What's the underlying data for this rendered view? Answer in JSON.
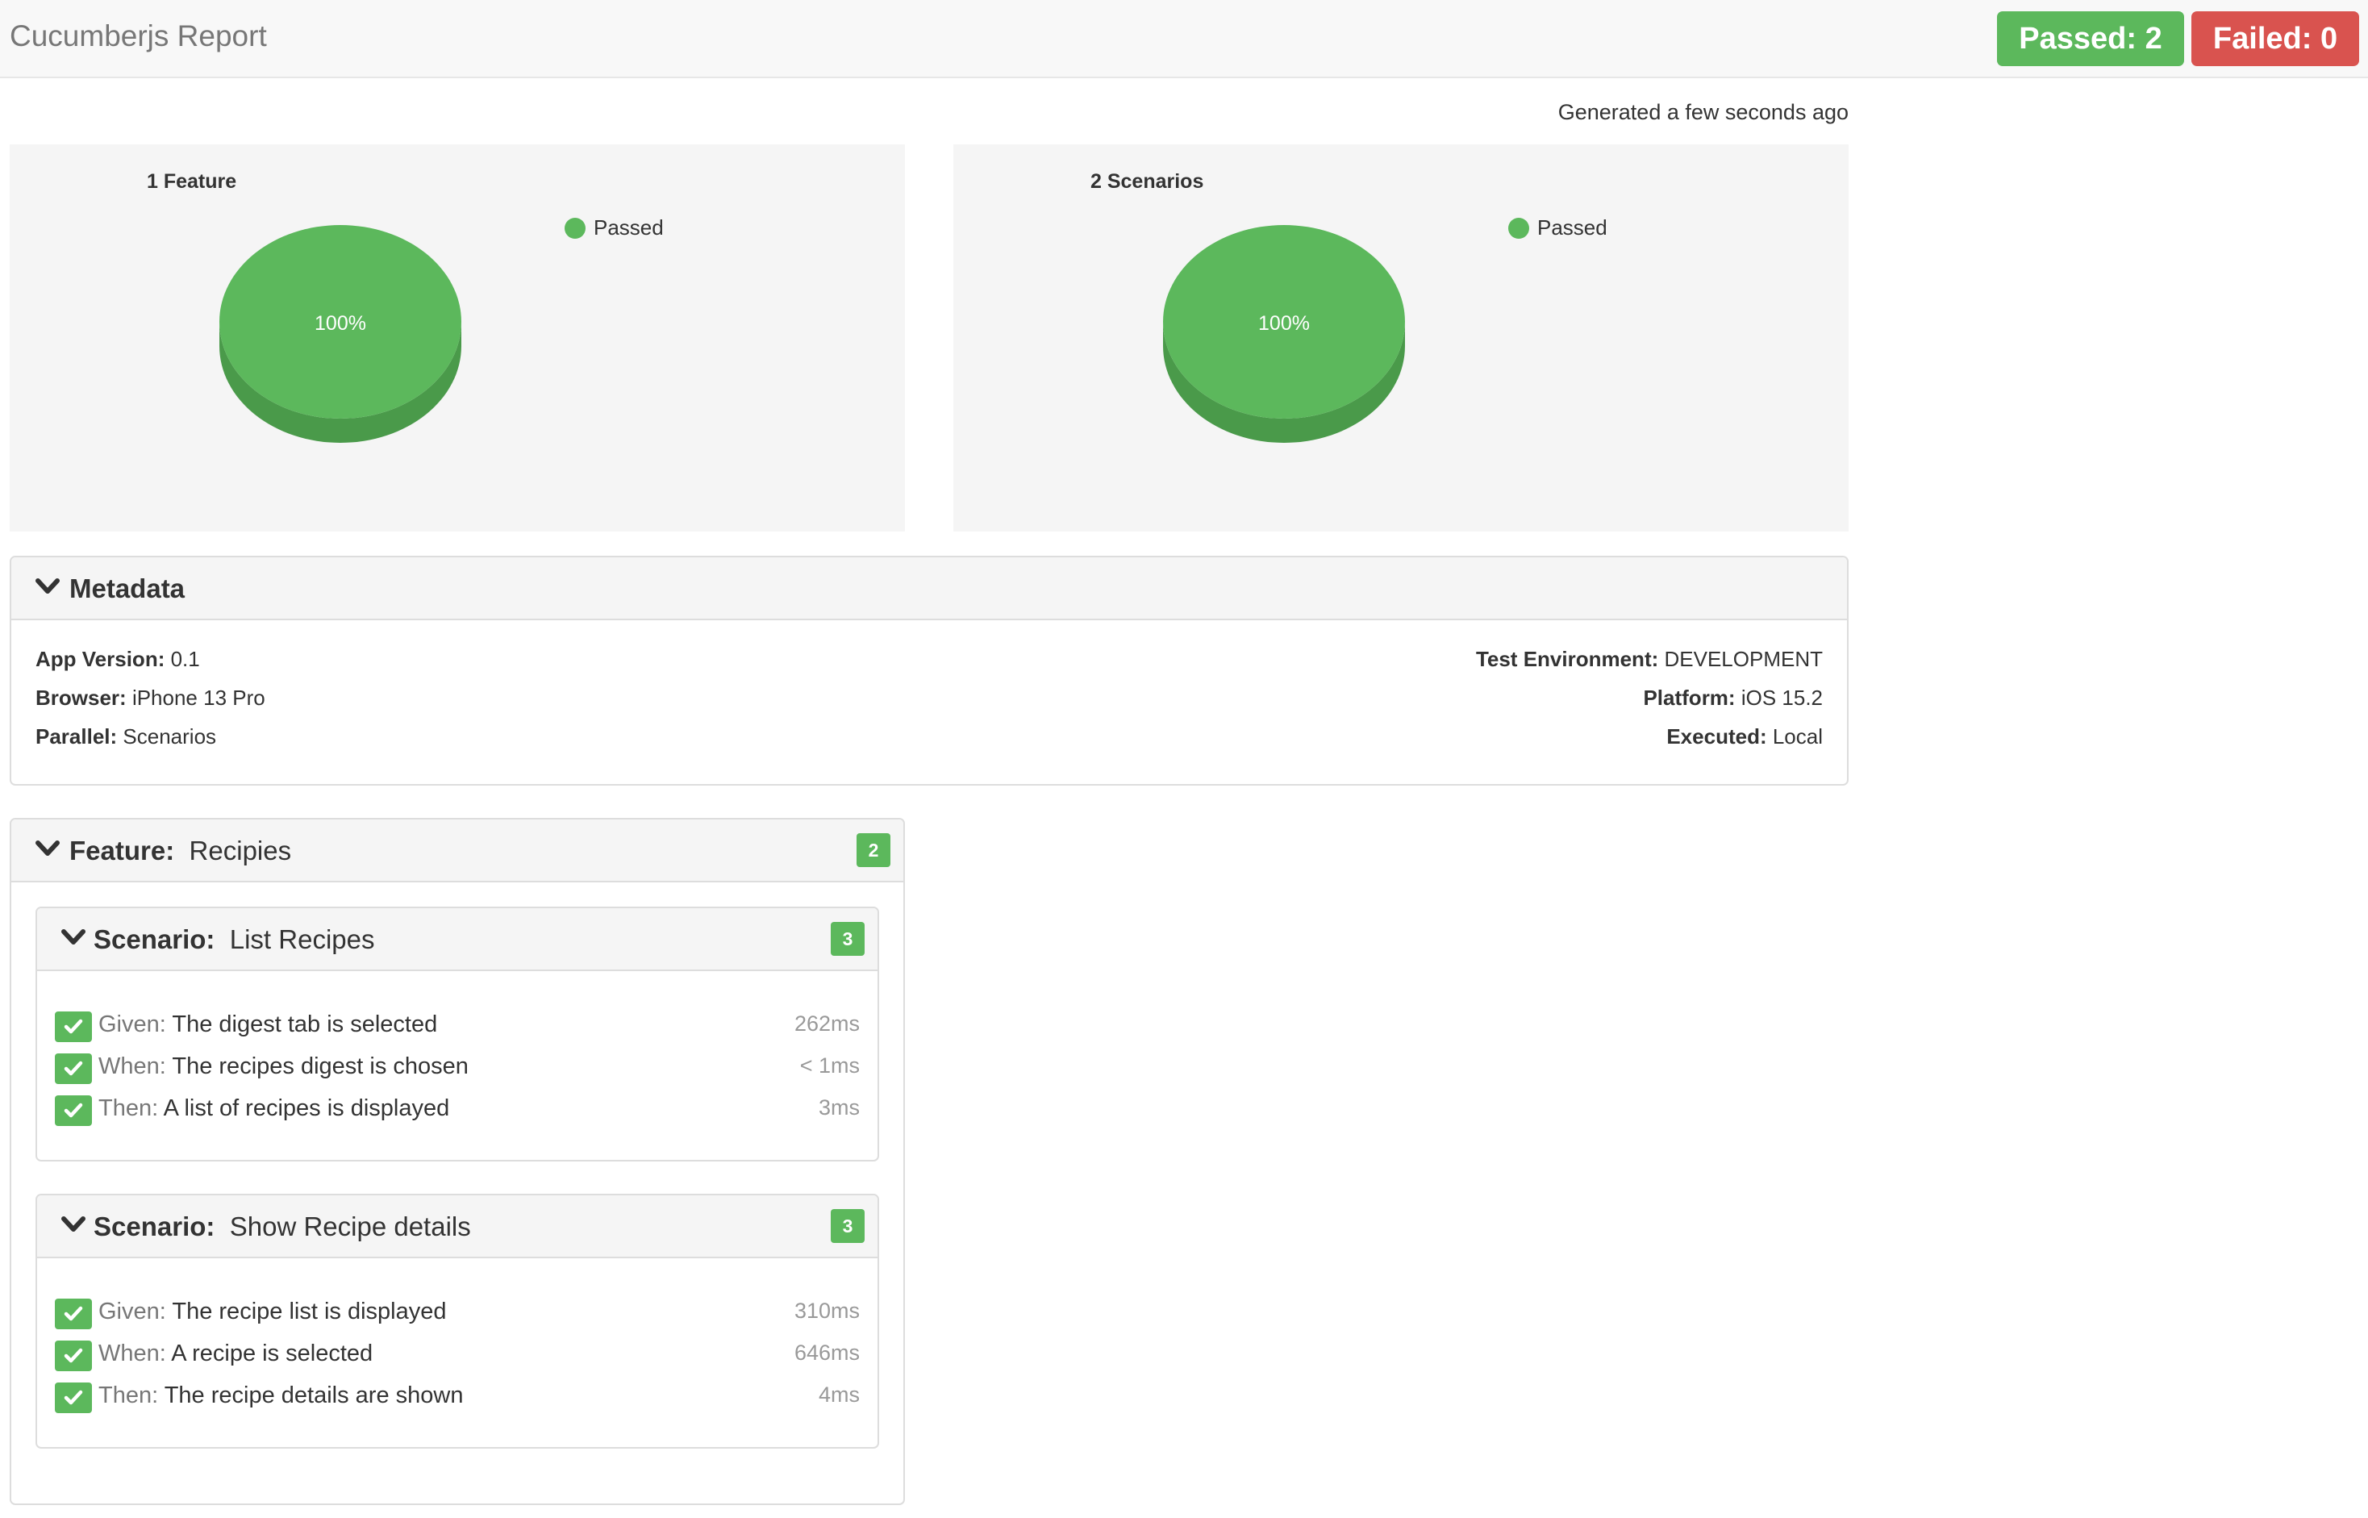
{
  "header": {
    "title": "Cucumberjs Report",
    "passed_label": "Passed: 2",
    "failed_label": "Failed: 0"
  },
  "generated": "Generated a few seconds ago",
  "colors": {
    "passed": "#5cb85c",
    "failed": "#d9534f"
  },
  "charts": [
    {
      "title": "1 Feature",
      "legend": "Passed",
      "slice_label": "100%"
    },
    {
      "title": "2 Scenarios",
      "legend": "Passed",
      "slice_label": "100%"
    }
  ],
  "chart_data": [
    {
      "type": "pie",
      "title": "1 Feature",
      "categories": [
        "Passed"
      ],
      "values": [
        100
      ],
      "labels": [
        "100%"
      ]
    },
    {
      "type": "pie",
      "title": "2 Scenarios",
      "categories": [
        "Passed"
      ],
      "values": [
        100
      ],
      "labels": [
        "100%"
      ]
    }
  ],
  "metadata": {
    "title": "Metadata",
    "left": [
      {
        "key": "App Version:",
        "value": "0.1"
      },
      {
        "key": "Browser:",
        "value": "iPhone 13 Pro"
      },
      {
        "key": "Parallel:",
        "value": "Scenarios"
      }
    ],
    "right": [
      {
        "key": "Test Environment:",
        "value": "DEVELOPMENT"
      },
      {
        "key": "Platform:",
        "value": "iOS 15.2"
      },
      {
        "key": "Executed:",
        "value": "Local"
      }
    ]
  },
  "feature": {
    "keyword": "Feature:",
    "name": "Recipies",
    "count": "2",
    "scenarios": [
      {
        "keyword": "Scenario:",
        "name": "List Recipes",
        "count": "3",
        "steps": [
          {
            "keyword": "Given:",
            "text": "The digest tab is selected",
            "duration": "262ms"
          },
          {
            "keyword": "When:",
            "text": "The recipes digest is chosen",
            "duration": "< 1ms"
          },
          {
            "keyword": "Then:",
            "text": "A list of recipes is displayed",
            "duration": "3ms"
          }
        ]
      },
      {
        "keyword": "Scenario:",
        "name": "Show Recipe details",
        "count": "3",
        "steps": [
          {
            "keyword": "Given:",
            "text": "The recipe list is displayed",
            "duration": "310ms"
          },
          {
            "keyword": "When:",
            "text": "A recipe is selected",
            "duration": "646ms"
          },
          {
            "keyword": "Then:",
            "text": "The recipe details are shown",
            "duration": "4ms"
          }
        ]
      }
    ]
  }
}
